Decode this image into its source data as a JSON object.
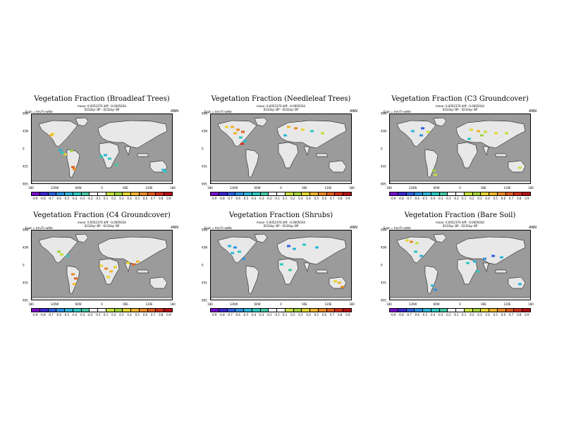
{
  "colorbar": {
    "colors": [
      "#7a0dcc",
      "#3c27d6",
      "#2f5fe0",
      "#2c8fe0",
      "#2bb5d6",
      "#2cc8c0",
      "#43c7a5",
      "#ffffff",
      "#ffffff",
      "#c8df3c",
      "#9fd13a",
      "#e6d42e",
      "#f0b52d",
      "#ea8a26",
      "#e05d1f",
      "#d3301a",
      "#b80f16"
    ]
  },
  "panels": [
    {
      "title": "Vegetation Fraction (Broadleaf Trees)",
      "meta1": "mean: 0.0052376 diff: -0.0005034",
      "meta2": "0232kyr BP - 0232kyr BP",
      "expt": "Expt = tmvTn-wtKe",
      "ann": "ANN",
      "xticks": [
        "180",
        "120W",
        "60W",
        "0",
        "60E",
        "120E",
        "180"
      ],
      "yticks": [
        "90N",
        "45N",
        "0",
        "45S",
        "90S"
      ],
      "clabels": [
        "-0.9",
        "-0.8",
        "-0.7",
        "-0.6",
        "-0.5",
        "-0.4",
        "-0.3",
        "-0.2",
        "-0.1",
        "0.1",
        "0.2",
        "0.3",
        "0.4",
        "0.5",
        "0.6",
        "0.7",
        "0.8",
        "0.9"
      ],
      "patches": [
        {
          "x": 29,
          "y": 28,
          "c": "#e6d42e"
        },
        {
          "x": 27,
          "y": 30,
          "c": "#f0b52d"
        },
        {
          "x": 43,
          "y": 55,
          "c": "#2cc8c0"
        },
        {
          "x": 40,
          "y": 51,
          "c": "#2bb5d6"
        },
        {
          "x": 47,
          "y": 57,
          "c": "#e6d42e"
        },
        {
          "x": 56,
          "y": 52,
          "c": "#9fd13a"
        },
        {
          "x": 58,
          "y": 75,
          "c": "#e05d1f"
        },
        {
          "x": 60,
          "y": 78,
          "c": "#ea8a26"
        },
        {
          "x": 98,
          "y": 60,
          "c": "#2cc8c0"
        },
        {
          "x": 104,
          "y": 58,
          "c": "#2bb5d6"
        },
        {
          "x": 110,
          "y": 63,
          "c": "#2cc8c0"
        },
        {
          "x": 120,
          "y": 72,
          "c": "#43c7a5"
        },
        {
          "x": 186,
          "y": 79,
          "c": "#2bb5d6"
        },
        {
          "x": 189,
          "y": 81,
          "c": "#2cc8c0"
        }
      ]
    },
    {
      "title": "Vegetation Fraction (Needleleaf Trees)",
      "meta1": "mean: 0.0052376 diff: -0.0005034",
      "meta2": "0232kyr BP - 0232kyr BP",
      "expt": "Expt = tmvTn-wtKe",
      "ann": "ANN",
      "xticks": [
        "180",
        "120W",
        "60W",
        "0",
        "60E",
        "120E",
        "180"
      ],
      "yticks": [
        "90N",
        "45N",
        "0",
        "45S",
        "90S"
      ],
      "clabels": [
        "-0.9",
        "-0.8",
        "-0.7",
        "-0.6",
        "-0.5",
        "-0.4",
        "-0.3",
        "-0.2",
        "-0.1",
        "0.1",
        "0.2",
        "0.3",
        "0.4",
        "0.5",
        "0.6",
        "0.7",
        "0.8",
        "0.9"
      ],
      "patches": [
        {
          "x": 22,
          "y": 18,
          "c": "#e6d42e"
        },
        {
          "x": 30,
          "y": 18,
          "c": "#f0b52d"
        },
        {
          "x": 38,
          "y": 22,
          "c": "#ea8a26"
        },
        {
          "x": 45,
          "y": 25,
          "c": "#e05d1f"
        },
        {
          "x": 34,
          "y": 27,
          "c": "#f0b52d"
        },
        {
          "x": 42,
          "y": 33,
          "c": "#2cc8c0"
        },
        {
          "x": 48,
          "y": 38,
          "c": "#2bb5d6"
        },
        {
          "x": 44,
          "y": 42,
          "c": "#d3301a"
        },
        {
          "x": 110,
          "y": 18,
          "c": "#f0b52d"
        },
        {
          "x": 120,
          "y": 20,
          "c": "#ea8a26"
        },
        {
          "x": 130,
          "y": 22,
          "c": "#e6d42e"
        },
        {
          "x": 143,
          "y": 24,
          "c": "#2cc8c0"
        },
        {
          "x": 158,
          "y": 27,
          "c": "#c8df3c"
        },
        {
          "x": 105,
          "y": 30,
          "c": "#2bb5d6"
        }
      ]
    },
    {
      "title": "Vegetation Fraction (C3 Groundcover)",
      "meta1": "mean: 0.0052376 diff: -0.0005034",
      "meta2": "0232kyr BP - 0232kyr BP",
      "expt": "Expt = tmvTn-wtKe",
      "ann": "ANN",
      "xticks": [
        "180",
        "120W",
        "60W",
        "0",
        "60E",
        "120E",
        "180"
      ],
      "yticks": [
        "90N",
        "45N",
        "0",
        "45S",
        "90S"
      ],
      "clabels": [
        "-0.9",
        "-0.8",
        "-0.7",
        "-0.6",
        "-0.5",
        "-0.4",
        "-0.3",
        "-0.2",
        "-0.1",
        "0.1",
        "0.2",
        "0.3",
        "0.4",
        "0.5",
        "0.6",
        "0.7",
        "0.8",
        "0.9"
      ],
      "patches": [
        {
          "x": 46,
          "y": 20,
          "c": "#2f5fe0"
        },
        {
          "x": 54,
          "y": 25,
          "c": "#c8df3c"
        },
        {
          "x": 32,
          "y": 24,
          "c": "#2bb5d6"
        },
        {
          "x": 44,
          "y": 30,
          "c": "#2c8fe0"
        },
        {
          "x": 115,
          "y": 22,
          "c": "#e6d42e"
        },
        {
          "x": 125,
          "y": 24,
          "c": "#f0b52d"
        },
        {
          "x": 135,
          "y": 25,
          "c": "#c8df3c"
        },
        {
          "x": 150,
          "y": 27,
          "c": "#e6d42e"
        },
        {
          "x": 165,
          "y": 27,
          "c": "#c8df3c"
        },
        {
          "x": 130,
          "y": 30,
          "c": "#9fd13a"
        },
        {
          "x": 62,
          "y": 80,
          "c": "#9fd13a"
        },
        {
          "x": 64,
          "y": 86,
          "c": "#c8df3c"
        },
        {
          "x": 184,
          "y": 76,
          "c": "#c8df3c"
        },
        {
          "x": 112,
          "y": 35,
          "c": "#2cc8c0"
        }
      ]
    },
    {
      "title": "Vegetation Fraction (C4 Groundcover)",
      "meta1": "mean: 0.0052376 diff: -0.0005034",
      "meta2": "0232kyr BP - 0232kyr BP",
      "expt": "Expt = tmvTn-wtKe",
      "ann": "ANN",
      "xticks": [
        "180",
        "120W",
        "60W",
        "0",
        "60E",
        "120E",
        "180"
      ],
      "yticks": [
        "90N",
        "45N",
        "0",
        "45S",
        "90S"
      ],
      "clabels": [
        "-0.9",
        "-0.8",
        "-0.7",
        "-0.6",
        "-0.5",
        "-0.4",
        "-0.3",
        "-0.2",
        "-0.1",
        "0.1",
        "0.2",
        "0.3",
        "0.4",
        "0.5",
        "0.6",
        "0.7",
        "0.8",
        "0.9"
      ],
      "patches": [
        {
          "x": 38,
          "y": 30,
          "c": "#9fd13a"
        },
        {
          "x": 42,
          "y": 34,
          "c": "#c8df3c"
        },
        {
          "x": 50,
          "y": 36,
          "c": "#2cc8c0"
        },
        {
          "x": 58,
          "y": 62,
          "c": "#ea8a26"
        },
        {
          "x": 62,
          "y": 68,
          "c": "#e05d1f"
        },
        {
          "x": 60,
          "y": 76,
          "c": "#f0b52d"
        },
        {
          "x": 98,
          "y": 50,
          "c": "#e6d42e"
        },
        {
          "x": 105,
          "y": 54,
          "c": "#ea8a26"
        },
        {
          "x": 112,
          "y": 58,
          "c": "#f0b52d"
        },
        {
          "x": 118,
          "y": 52,
          "c": "#e6d42e"
        },
        {
          "x": 136,
          "y": 46,
          "c": "#e6d42e"
        },
        {
          "x": 144,
          "y": 48,
          "c": "#e05d1f"
        },
        {
          "x": 150,
          "y": 44,
          "c": "#f0b52d"
        },
        {
          "x": 108,
          "y": 66,
          "c": "#e6d42e"
        }
      ]
    },
    {
      "title": "Vegetation Fraction (Shrubs)",
      "meta1": "mean: 0.0052376 diff: -0.0005034",
      "meta2": "0232kyr BP - 0232kyr BP",
      "expt": "Expt = tmvTn-wtKe",
      "ann": "ANN",
      "xticks": [
        "180",
        "120W",
        "60W",
        "0",
        "60E",
        "120E",
        "180"
      ],
      "yticks": [
        "90N",
        "45N",
        "0",
        "45S",
        "90S"
      ],
      "clabels": [
        "-0.9",
        "-0.8",
        "-0.7",
        "-0.6",
        "-0.5",
        "-0.4",
        "-0.3",
        "-0.2",
        "-0.1",
        "0.1",
        "0.2",
        "0.3",
        "0.4",
        "0.5",
        "0.6",
        "0.7",
        "0.8",
        "0.9"
      ],
      "patches": [
        {
          "x": 26,
          "y": 22,
          "c": "#2bb5d6"
        },
        {
          "x": 34,
          "y": 24,
          "c": "#2c8fe0"
        },
        {
          "x": 40,
          "y": 30,
          "c": "#2cc8c0"
        },
        {
          "x": 30,
          "y": 32,
          "c": "#2bb5d6"
        },
        {
          "x": 46,
          "y": 40,
          "c": "#2c8fe0"
        },
        {
          "x": 110,
          "y": 22,
          "c": "#2f5fe0"
        },
        {
          "x": 118,
          "y": 26,
          "c": "#2bb5d6"
        },
        {
          "x": 132,
          "y": 20,
          "c": "#2cc8c0"
        },
        {
          "x": 150,
          "y": 24,
          "c": "#2bb5d6"
        },
        {
          "x": 100,
          "y": 48,
          "c": "#2cc8c0"
        },
        {
          "x": 112,
          "y": 56,
          "c": "#43c7a5"
        },
        {
          "x": 176,
          "y": 72,
          "c": "#e6d42e"
        },
        {
          "x": 182,
          "y": 74,
          "c": "#f0b52d"
        },
        {
          "x": 186,
          "y": 80,
          "c": "#ea8a26"
        }
      ]
    },
    {
      "title": "Vegetation Fraction (Bare Soil)",
      "meta1": "mean: 0.0052376 diff: -0.0005034",
      "meta2": "0232kyr BP - 0232kyr BP",
      "expt": "Expt = tmvTn-wtKe",
      "ann": "ANN",
      "xticks": [
        "180",
        "120W",
        "60W",
        "0",
        "60E",
        "120E",
        "180"
      ],
      "yticks": [
        "90N",
        "45N",
        "0",
        "45S",
        "90S"
      ],
      "clabels": [
        "-0.9",
        "-0.8",
        "-0.7",
        "-0.6",
        "-0.5",
        "-0.4",
        "-0.3",
        "-0.2",
        "-0.1",
        "0.1",
        "0.2",
        "0.3",
        "0.4",
        "0.5",
        "0.6",
        "0.7",
        "0.8",
        "0.9"
      ],
      "patches": [
        {
          "x": 24,
          "y": 14,
          "c": "#e6d42e"
        },
        {
          "x": 30,
          "y": 16,
          "c": "#ea8a26"
        },
        {
          "x": 38,
          "y": 18,
          "c": "#c8df3c"
        },
        {
          "x": 36,
          "y": 30,
          "c": "#2cc8c0"
        },
        {
          "x": 44,
          "y": 36,
          "c": "#2bb5d6"
        },
        {
          "x": 60,
          "y": 78,
          "c": "#2bb5d6"
        },
        {
          "x": 64,
          "y": 84,
          "c": "#2c8fe0"
        },
        {
          "x": 110,
          "y": 46,
          "c": "#2cc8c0"
        },
        {
          "x": 120,
          "y": 44,
          "c": "#2bb5d6"
        },
        {
          "x": 134,
          "y": 40,
          "c": "#2c8fe0"
        },
        {
          "x": 146,
          "y": 36,
          "c": "#2f5fe0"
        },
        {
          "x": 158,
          "y": 38,
          "c": "#2bb5d6"
        },
        {
          "x": 184,
          "y": 76,
          "c": "#2bb5d6"
        },
        {
          "x": 124,
          "y": 58,
          "c": "#2cc8c0"
        }
      ]
    }
  ]
}
